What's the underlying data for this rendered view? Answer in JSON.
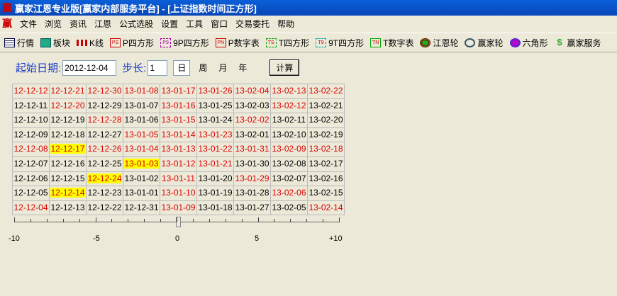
{
  "window": {
    "title": "赢家江恩专业版[赢家内部服务平台] - [上证指数时间正方形]",
    "logo": "赢"
  },
  "menu": [
    "文件",
    "浏览",
    "资讯",
    "江恩",
    "公式选股",
    "设置",
    "工具",
    "窗口",
    "交易委托",
    "帮助"
  ],
  "toolbar": [
    {
      "label": "行情",
      "icon": "quote-table-icon"
    },
    {
      "label": "板块",
      "icon": "sector-blocks-icon"
    },
    {
      "label": "K线",
      "icon": "candlestick-icon"
    },
    {
      "label": "P四方形",
      "icon": "ps-icon",
      "badge": "PS"
    },
    {
      "label": "9P四方形",
      "icon": "p9-icon",
      "badge": "P9"
    },
    {
      "label": "P数字表",
      "icon": "pn-icon",
      "badge": "PN"
    },
    {
      "label": "T四方形",
      "icon": "ts-icon",
      "badge": "TS"
    },
    {
      "label": "9T四方形",
      "icon": "t9-icon",
      "badge": "T9"
    },
    {
      "label": "T数字表",
      "icon": "tn-icon",
      "badge": "TN"
    },
    {
      "label": "江恩轮",
      "icon": "gann-wheel-icon"
    },
    {
      "label": "赢家轮",
      "icon": "winner-wheel-icon"
    },
    {
      "label": "六角形",
      "icon": "hexagon-icon"
    },
    {
      "label": "赢家服务",
      "icon": "dollar-icon"
    }
  ],
  "form": {
    "start_label": "起始日期:",
    "start_value": "2012-12-04",
    "step_label": "步长:",
    "step_value": "1",
    "units": [
      "日",
      "周",
      "月",
      "年"
    ],
    "calc_label": "计算"
  },
  "grid": {
    "rows": [
      [
        "12-12-12",
        "12-12-21",
        "12-12-30",
        "13-01-08",
        "13-01-17",
        "13-01-26",
        "13-02-04",
        "13-02-13",
        "13-02-22"
      ],
      [
        "12-12-11",
        "12-12-20",
        "12-12-29",
        "13-01-07",
        "13-01-16",
        "13-01-25",
        "13-02-03",
        "13-02-12",
        "13-02-21"
      ],
      [
        "12-12-10",
        "12-12-19",
        "12-12-28",
        "13-01-06",
        "13-01-15",
        "13-01-24",
        "13-02-02",
        "13-02-11",
        "13-02-20"
      ],
      [
        "12-12-09",
        "12-12-18",
        "12-12-27",
        "13-01-05",
        "13-01-14",
        "13-01-23",
        "13-02-01",
        "13-02-10",
        "13-02-19"
      ],
      [
        "12-12-08",
        "12-12-17",
        "12-12-26",
        "13-01-04",
        "13-01-13",
        "13-01-22",
        "13-01-31",
        "13-02-09",
        "13-02-18"
      ],
      [
        "12-12-07",
        "12-12-16",
        "12-12-25",
        "13-01-03",
        "13-01-12",
        "13-01-21",
        "13-01-30",
        "13-02-08",
        "13-02-17"
      ],
      [
        "12-12-06",
        "12-12-15",
        "12-12-24",
        "13-01-02",
        "13-01-11",
        "13-01-20",
        "13-01-29",
        "13-02-07",
        "13-02-16"
      ],
      [
        "12-12-05",
        "12-12-14",
        "12-12-23",
        "13-01-01",
        "13-01-10",
        "13-01-19",
        "13-01-28",
        "13-02-06",
        "13-02-15"
      ],
      [
        "12-12-04",
        "12-12-13",
        "12-12-22",
        "12-12-31",
        "13-01-09",
        "13-01-18",
        "13-01-27",
        "13-02-05",
        "13-02-14"
      ]
    ],
    "red": [
      "12-12-12",
      "12-12-21",
      "12-12-30",
      "13-01-08",
      "13-01-17",
      "13-01-26",
      "13-02-04",
      "13-02-13",
      "13-02-22",
      "12-12-20",
      "13-01-16",
      "13-02-12",
      "12-12-28",
      "13-01-15",
      "13-02-02",
      "13-01-05",
      "13-01-14",
      "13-01-23",
      "12-12-08",
      "12-12-17",
      "12-12-26",
      "13-01-04",
      "13-01-13",
      "13-01-22",
      "13-01-31",
      "13-02-09",
      "13-02-18",
      "13-01-03",
      "13-01-12",
      "13-01-21",
      "12-12-24",
      "13-01-11",
      "13-01-29",
      "12-12-14",
      "13-01-10",
      "13-02-06",
      "12-12-04",
      "13-01-09",
      "13-02-14"
    ],
    "highlighted": [
      "12-12-17",
      "12-12-24",
      "13-01-03",
      "12-12-14"
    ],
    "colors": {
      "red": "#dd0000",
      "highlight": "#ffff00"
    }
  },
  "slider": {
    "min": -10,
    "max": 10,
    "value": 0,
    "labels": [
      "-10",
      "-5",
      "0",
      "5",
      "+10"
    ]
  }
}
